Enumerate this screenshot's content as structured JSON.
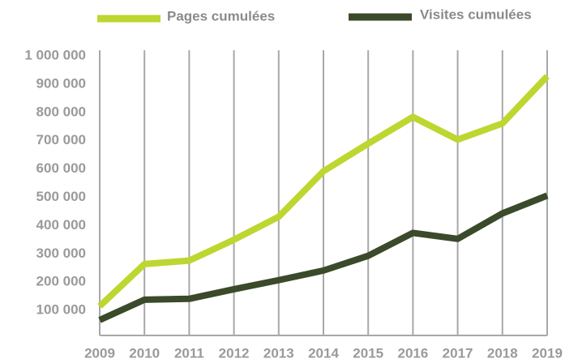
{
  "chart_data": {
    "type": "line",
    "categories": [
      "2009",
      "2010",
      "2011",
      "2012",
      "2013",
      "2014",
      "2015",
      "2016",
      "2017",
      "2018",
      "2019"
    ],
    "series": [
      {
        "name": "Pages cumulées",
        "color": "#bed630",
        "values": [
          115000,
          264000,
          276000,
          350000,
          431000,
          592000,
          690000,
          784000,
          704000,
          761000,
          928000
        ]
      },
      {
        "name": "Visites cumulées",
        "color": "#3a4a2a",
        "values": [
          66000,
          138000,
          141000,
          175000,
          207000,
          241000,
          293000,
          374000,
          353000,
          443000,
          506000
        ]
      }
    ],
    "ylim": [
      0,
      1020000
    ],
    "yticks": [
      {
        "value": 100000,
        "label": "100 000"
      },
      {
        "value": 200000,
        "label": "200 000"
      },
      {
        "value": 300000,
        "label": "300 000"
      },
      {
        "value": 400000,
        "label": "400 000"
      },
      {
        "value": 500000,
        "label": "500 000"
      },
      {
        "value": 600000,
        "label": "600 000"
      },
      {
        "value": 700000,
        "label": "700 000"
      },
      {
        "value": 800000,
        "label": "800 000"
      },
      {
        "value": 900000,
        "label": "900 000"
      },
      {
        "value": 1000000,
        "label": "1 000 000"
      }
    ],
    "grid": false
  }
}
